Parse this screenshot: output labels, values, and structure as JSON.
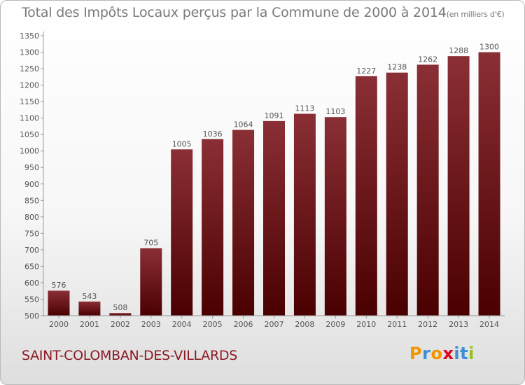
{
  "chart_data": {
    "type": "bar",
    "title": "Total des Impôts Locaux perçus par la Commune de 2000 à 2014",
    "unit_note": "(en milliers d'€)",
    "categories": [
      "2000",
      "2001",
      "2002",
      "2003",
      "2004",
      "2005",
      "2006",
      "2007",
      "2008",
      "2009",
      "2010",
      "2011",
      "2012",
      "2013",
      "2014"
    ],
    "values": [
      576,
      543,
      508,
      705,
      1005,
      1036,
      1064,
      1091,
      1113,
      1103,
      1227,
      1238,
      1262,
      1288,
      1300
    ],
    "ylim": [
      500,
      1350
    ],
    "yticks": [
      500,
      550,
      600,
      650,
      700,
      750,
      800,
      850,
      900,
      950,
      1000,
      1050,
      1100,
      1150,
      1200,
      1250,
      1300,
      1350
    ],
    "xlabel": "",
    "ylabel": "",
    "grid": false,
    "colors": {
      "bar_top": "#8a2f35",
      "bar_bottom": "#4a0000",
      "label": "#555555",
      "axis": "#999999"
    }
  },
  "commune_name": "SAINT-COLOMBAN-DES-VILLARDS",
  "logo": {
    "letters": [
      "P",
      "r",
      "o",
      "x",
      "i",
      "t",
      "i"
    ],
    "colors": [
      "#f29400",
      "#3d8fd3",
      "#f29400",
      "#e2001a",
      "#3d8fd3",
      "#3d8fd3",
      "#95c11f"
    ]
  }
}
